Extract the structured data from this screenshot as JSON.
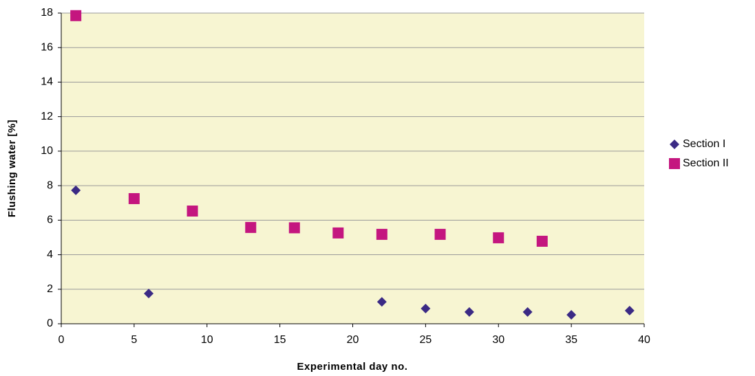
{
  "chart_data": {
    "type": "scatter",
    "xlabel": "Experimental day no.",
    "ylabel": "Flushing water [%]",
    "series": [
      {
        "name": "Section I",
        "color": "#3b2a85",
        "marker": "diamond",
        "x": [
          1,
          6,
          22,
          25,
          28,
          32,
          35,
          39
        ],
        "values": [
          7.73,
          1.75,
          1.27,
          0.88,
          0.68,
          0.68,
          0.52,
          0.76
        ]
      },
      {
        "name": "Section II",
        "color": "#c4167f",
        "marker": "square",
        "x": [
          1,
          5,
          9,
          13,
          16,
          19,
          22,
          26,
          30,
          33
        ],
        "values": [
          17.85,
          7.25,
          6.53,
          5.58,
          5.56,
          5.26,
          5.18,
          5.18,
          4.98,
          4.78
        ]
      }
    ],
    "xlim": [
      0,
      40
    ],
    "xticks": [
      0,
      5,
      10,
      15,
      20,
      25,
      30,
      35,
      40
    ],
    "ylim": [
      0,
      18
    ],
    "yticks": [
      0,
      2,
      4,
      6,
      8,
      10,
      12,
      14,
      16,
      18
    ],
    "grid": true,
    "legend": "right",
    "plot_background": "#f7f5d2"
  }
}
